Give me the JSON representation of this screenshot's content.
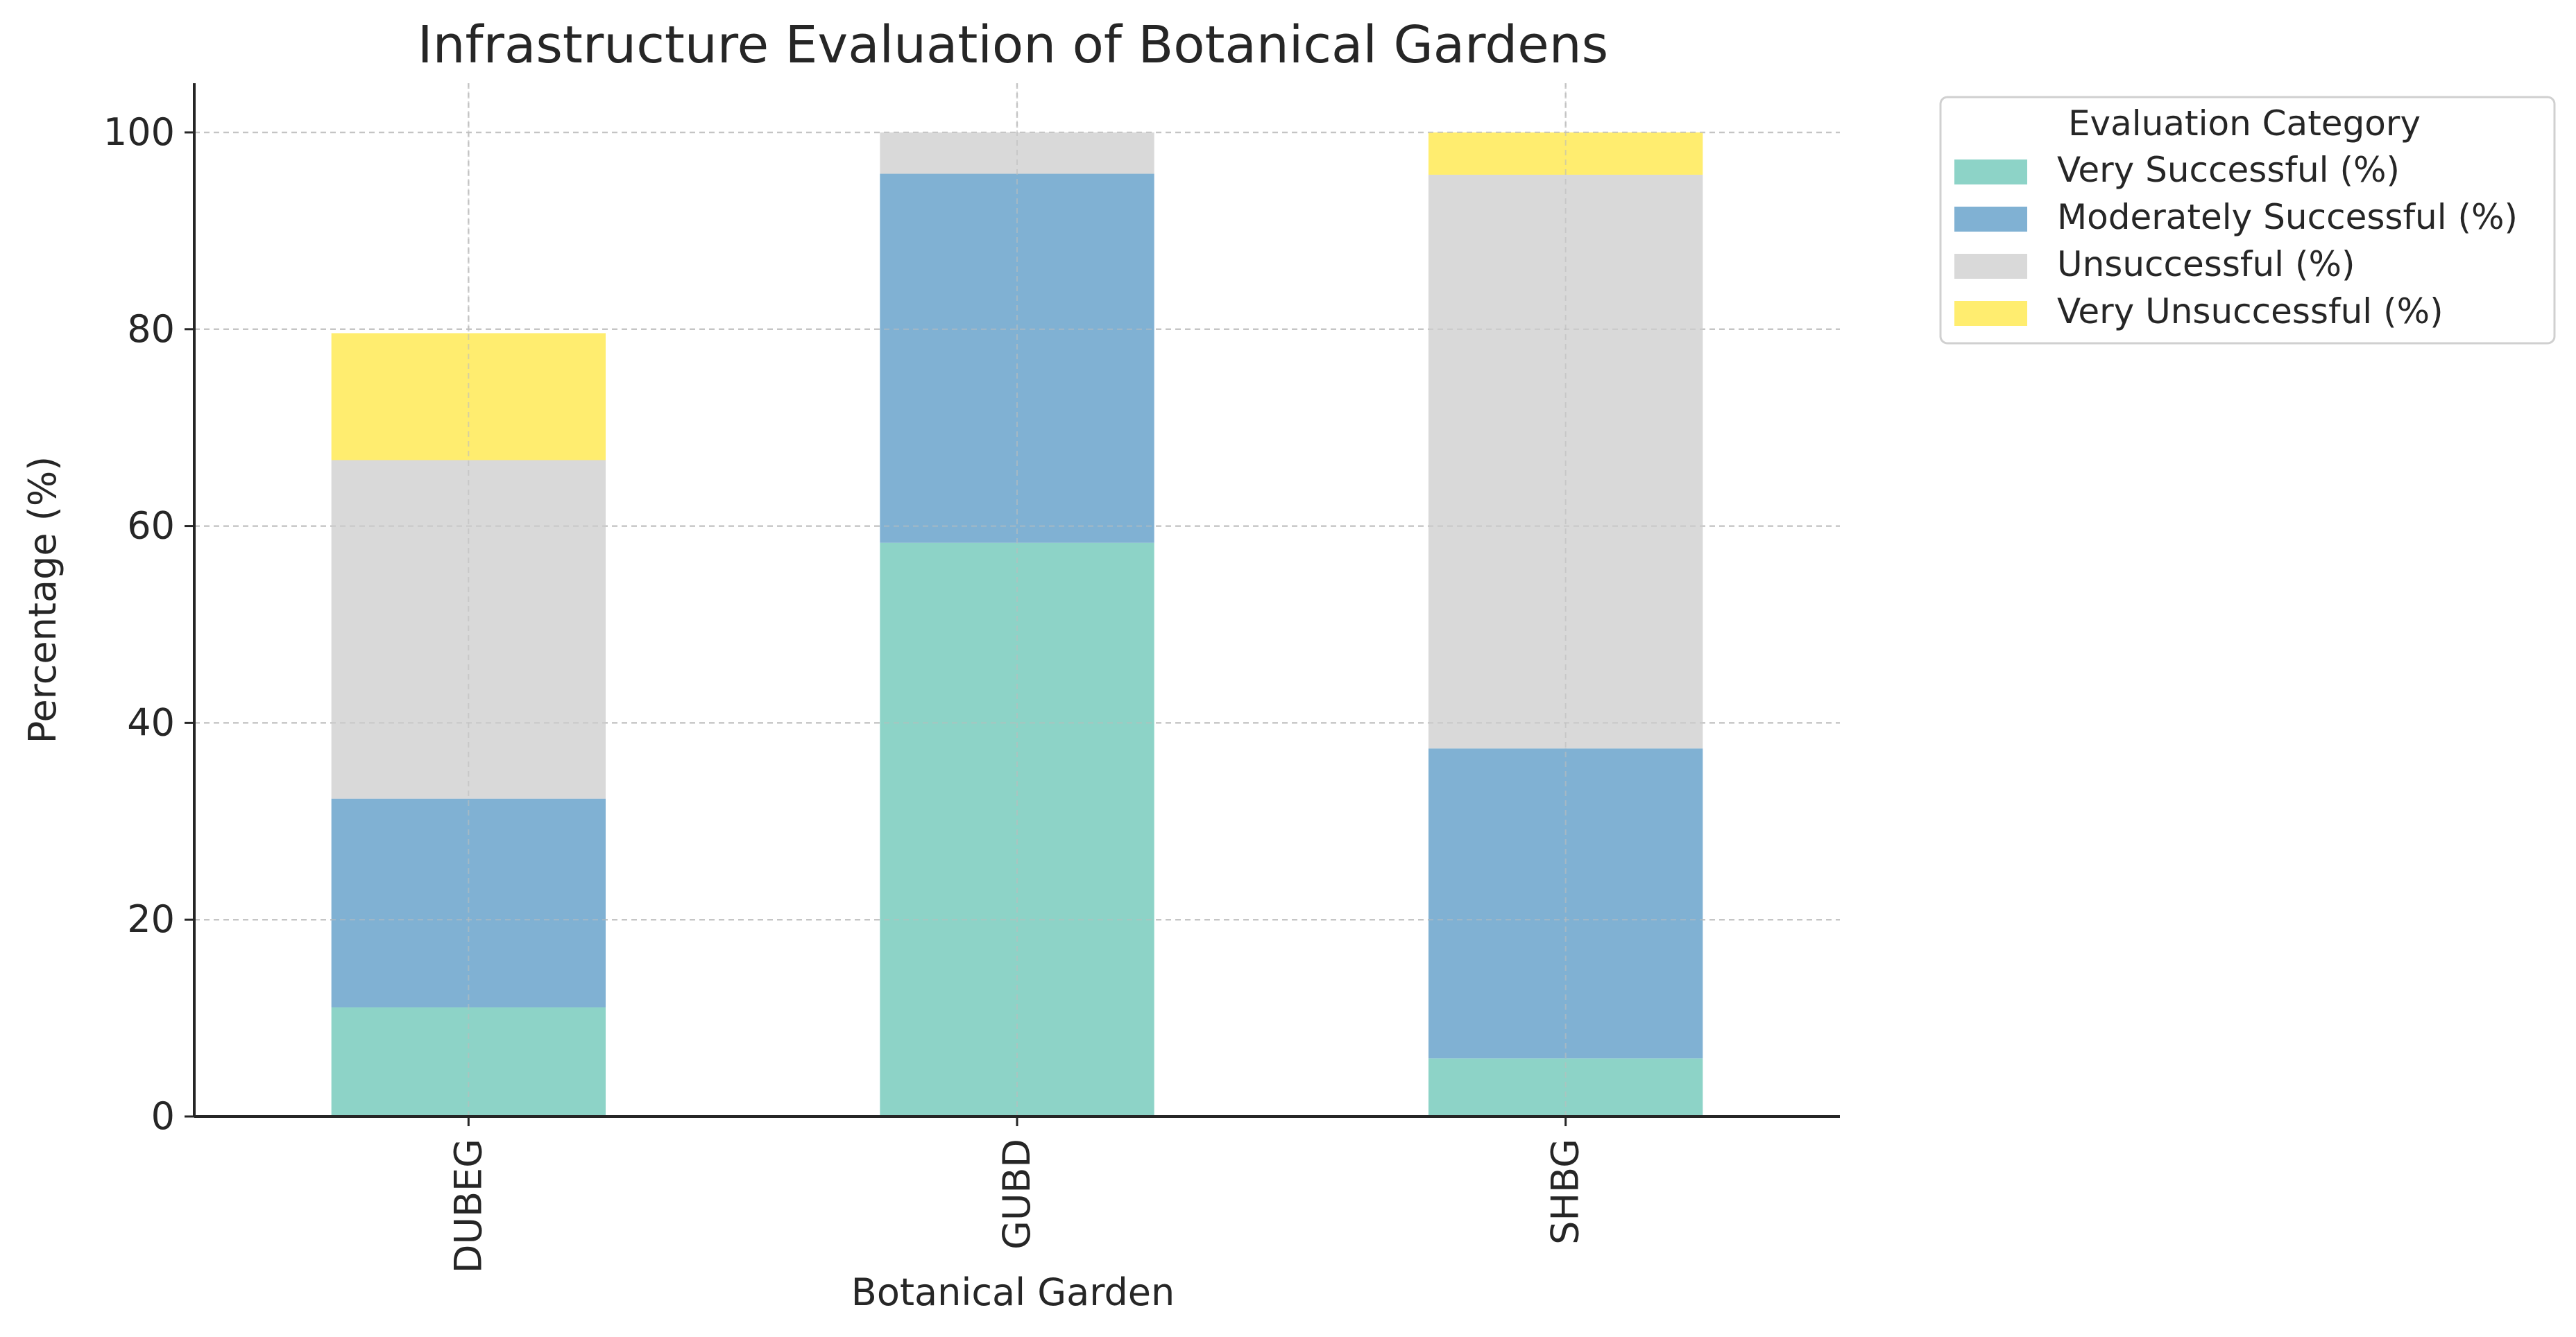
{
  "chart_data": {
    "type": "bar",
    "stacked": true,
    "title": "Infrastructure Evaluation of Botanical Gardens",
    "xlabel": "Botanical Garden",
    "ylabel": "Percentage (%)",
    "categories": [
      "DUBEG",
      "GUBD",
      "SHBG"
    ],
    "ylim": [
      0,
      105
    ],
    "yticks": [
      0,
      20,
      40,
      60,
      80,
      100
    ],
    "grid": true,
    "legend": {
      "title": "Evaluation Category",
      "position": "outside-top-right"
    },
    "series": [
      {
        "name": "Very Successful (%)",
        "values": [
          11.1,
          58.3,
          5.9
        ],
        "color": "#8dd3c7"
      },
      {
        "name": "Moderately Successful (%)",
        "values": [
          21.2,
          37.5,
          31.5
        ],
        "color": "#80b1d3"
      },
      {
        "name": "Unsuccessful (%)",
        "values": [
          34.4,
          4.2,
          58.3
        ],
        "color": "#d9d9d9"
      },
      {
        "name": "Very Unsuccessful (%)",
        "values": [
          12.9,
          0,
          4.3
        ],
        "color": "#ffed6f"
      }
    ]
  }
}
